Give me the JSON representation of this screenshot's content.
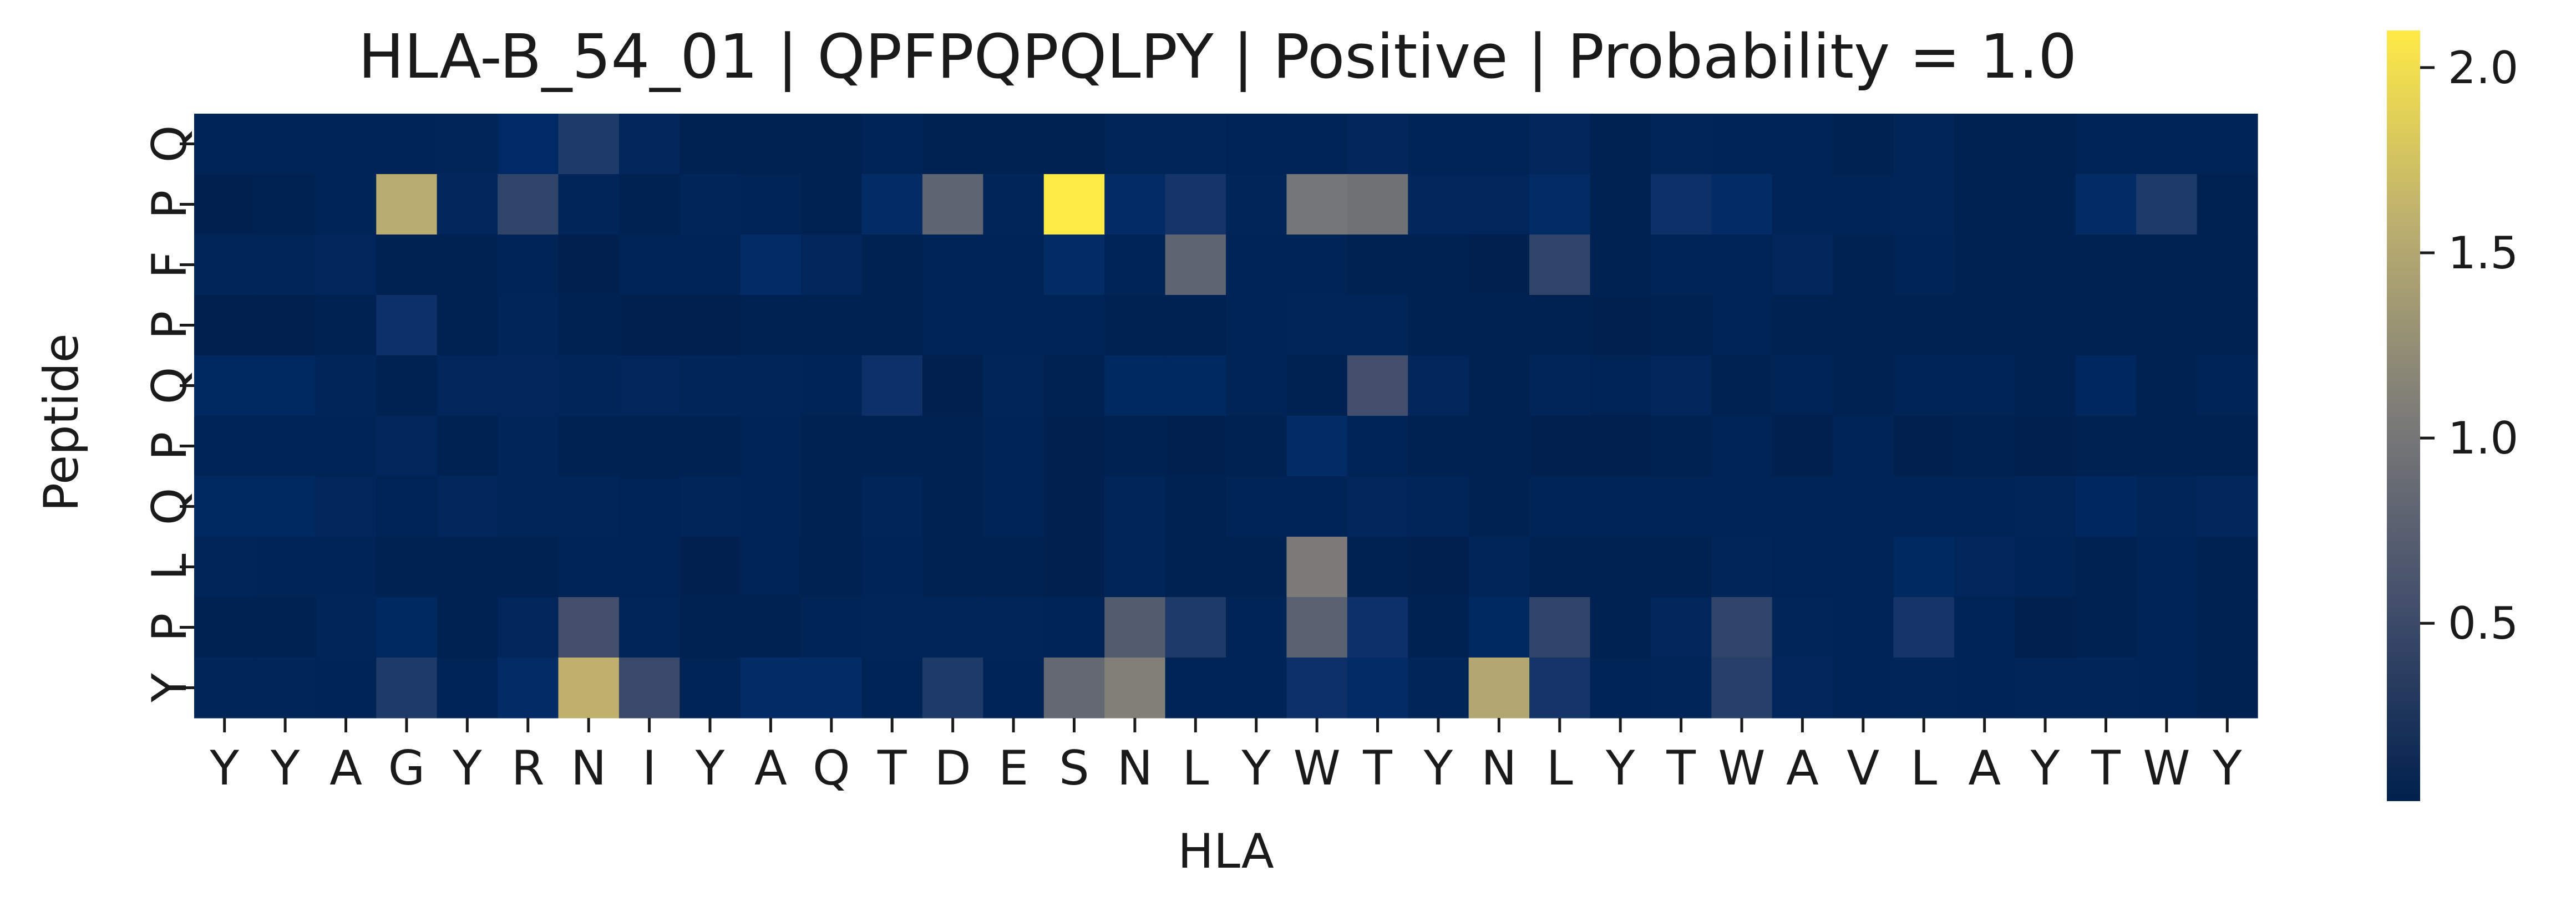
{
  "chart_data": {
    "type": "heatmap",
    "title": "HLA-B_54_01 | QPFPQPQLPY | Positive | Probability = 1.0",
    "xlabel": "HLA",
    "ylabel": "Peptide",
    "x_categories": [
      "Y",
      "Y",
      "A",
      "G",
      "Y",
      "R",
      "N",
      "I",
      "Y",
      "A",
      "Q",
      "T",
      "D",
      "E",
      "S",
      "N",
      "L",
      "Y",
      "W",
      "T",
      "Y",
      "N",
      "L",
      "Y",
      "T",
      "W",
      "A",
      "V",
      "L",
      "A",
      "Y",
      "T",
      "W",
      "Y"
    ],
    "y_categories": [
      "Q",
      "P",
      "F",
      "P",
      "Q",
      "P",
      "Q",
      "L",
      "P",
      "Y"
    ],
    "values": [
      [
        0.08,
        0.08,
        0.08,
        0.08,
        0.1,
        0.18,
        0.35,
        0.12,
        0.06,
        0.06,
        0.06,
        0.08,
        0.06,
        0.05,
        0.05,
        0.1,
        0.1,
        0.07,
        0.08,
        0.12,
        0.08,
        0.08,
        0.12,
        0.06,
        0.1,
        0.08,
        0.07,
        0.05,
        0.1,
        0.06,
        0.06,
        0.08,
        0.08,
        0.08
      ],
      [
        0.03,
        0.05,
        0.08,
        1.55,
        0.12,
        0.45,
        0.1,
        0.06,
        0.1,
        0.08,
        0.06,
        0.2,
        0.8,
        0.1,
        2.1,
        0.2,
        0.3,
        0.1,
        1.0,
        0.95,
        0.12,
        0.12,
        0.2,
        0.05,
        0.25,
        0.2,
        0.08,
        0.08,
        0.1,
        0.06,
        0.06,
        0.2,
        0.35,
        0.05
      ],
      [
        0.1,
        0.1,
        0.12,
        0.06,
        0.06,
        0.08,
        0.04,
        0.08,
        0.08,
        0.2,
        0.12,
        0.06,
        0.08,
        0.08,
        0.2,
        0.08,
        0.8,
        0.08,
        0.08,
        0.05,
        0.05,
        0.04,
        0.45,
        0.05,
        0.08,
        0.07,
        0.12,
        0.05,
        0.08,
        0.06,
        0.06,
        0.06,
        0.05,
        0.06
      ],
      [
        0.04,
        0.04,
        0.06,
        0.25,
        0.06,
        0.1,
        0.06,
        0.04,
        0.04,
        0.06,
        0.06,
        0.06,
        0.08,
        0.08,
        0.08,
        0.05,
        0.06,
        0.08,
        0.1,
        0.1,
        0.06,
        0.06,
        0.06,
        0.03,
        0.06,
        0.07,
        0.05,
        0.05,
        0.06,
        0.05,
        0.05,
        0.06,
        0.06,
        0.05
      ],
      [
        0.15,
        0.15,
        0.1,
        0.06,
        0.12,
        0.12,
        0.1,
        0.12,
        0.1,
        0.1,
        0.08,
        0.25,
        0.04,
        0.1,
        0.05,
        0.15,
        0.15,
        0.08,
        0.06,
        0.55,
        0.12,
        0.06,
        0.1,
        0.07,
        0.12,
        0.06,
        0.07,
        0.06,
        0.08,
        0.08,
        0.06,
        0.14,
        0.06,
        0.08
      ],
      [
        0.08,
        0.08,
        0.08,
        0.12,
        0.06,
        0.1,
        0.06,
        0.05,
        0.05,
        0.08,
        0.06,
        0.06,
        0.06,
        0.08,
        0.04,
        0.05,
        0.04,
        0.06,
        0.2,
        0.08,
        0.05,
        0.05,
        0.04,
        0.03,
        0.06,
        0.08,
        0.04,
        0.08,
        0.03,
        0.05,
        0.03,
        0.06,
        0.06,
        0.05
      ],
      [
        0.15,
        0.15,
        0.12,
        0.07,
        0.12,
        0.1,
        0.1,
        0.07,
        0.1,
        0.08,
        0.06,
        0.1,
        0.05,
        0.08,
        0.04,
        0.1,
        0.06,
        0.08,
        0.08,
        0.12,
        0.1,
        0.06,
        0.08,
        0.08,
        0.08,
        0.08,
        0.08,
        0.08,
        0.08,
        0.08,
        0.1,
        0.14,
        0.1,
        0.12
      ],
      [
        0.1,
        0.08,
        0.08,
        0.06,
        0.06,
        0.05,
        0.08,
        0.07,
        0.04,
        0.07,
        0.06,
        0.08,
        0.06,
        0.06,
        0.03,
        0.1,
        0.06,
        0.06,
        1.05,
        0.06,
        0.04,
        0.1,
        0.06,
        0.05,
        0.06,
        0.1,
        0.07,
        0.08,
        0.15,
        0.12,
        0.08,
        0.06,
        0.08,
        0.06
      ],
      [
        0.05,
        0.05,
        0.1,
        0.15,
        0.06,
        0.12,
        0.55,
        0.1,
        0.05,
        0.06,
        0.08,
        0.1,
        0.1,
        0.1,
        0.08,
        0.7,
        0.35,
        0.08,
        0.75,
        0.25,
        0.06,
        0.15,
        0.45,
        0.05,
        0.12,
        0.45,
        0.1,
        0.08,
        0.3,
        0.08,
        0.04,
        0.06,
        0.08,
        0.05
      ],
      [
        0.1,
        0.1,
        0.08,
        0.35,
        0.08,
        0.2,
        1.6,
        0.5,
        0.08,
        0.2,
        0.2,
        0.08,
        0.35,
        0.08,
        0.85,
        1.1,
        0.08,
        0.08,
        0.25,
        0.2,
        0.1,
        1.5,
        0.3,
        0.08,
        0.1,
        0.4,
        0.12,
        0.08,
        0.1,
        0.08,
        0.1,
        0.1,
        0.08,
        0.06
      ]
    ],
    "vmin": 0.02,
    "vmax": 2.1,
    "colormap": "cividis",
    "colorbar_ticks": [
      0.5,
      1.0,
      1.5,
      2.0
    ],
    "colorbar_tick_labels": [
      "0.5",
      "1.0",
      "1.5",
      "2.0"
    ]
  }
}
